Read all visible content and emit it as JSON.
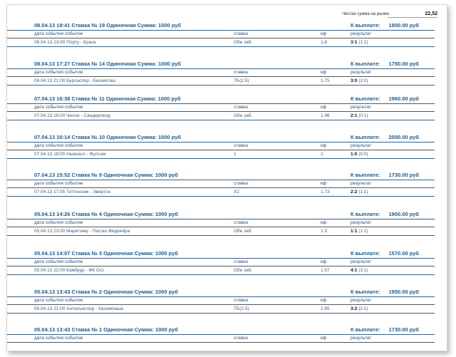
{
  "summary": {
    "label": "Чистая сумма на рынке:",
    "value": "22,52"
  },
  "columns": {
    "event": "дата события  событие",
    "stake": "ставка",
    "coef": "кф",
    "result": "результат"
  },
  "payout_label": "К выплате:",
  "bets": [
    {
      "title": "08.04.13 18:41  Ставка № 19   Одиночная   Сумма: 1000 руб",
      "payout": "1800.00 руб",
      "event": "08.04.13 23:00 Порту - Брага",
      "stake": "Обе заб.",
      "coef": "1.8",
      "score": "3:1",
      "half": "(1:1)"
    },
    {
      "title": "08.04.13 17:27  Ставка № 14   Одиночная   Сумма: 1000 руб",
      "payout": "1750.00 руб",
      "event": "08.04.13 21:00 Бурсаспор - Бешикташ",
      "stake": "ТБ(2.5)",
      "coef": "1.75",
      "score": "3:0",
      "half": "(2:0)"
    },
    {
      "title": "07.04.13 16:38  Ставка № 11   Одиночная   Сумма: 1000 руб",
      "payout": "1960.00 руб",
      "event": "07.04.13 18:00 Челси - Сандерленд",
      "stake": "Обе заб.",
      "coef": "1.96",
      "score": "2:1",
      "half": "(0:1)"
    },
    {
      "title": "07.04.13 16:14  Ставка № 10   Одиночная   Сумма: 1000 руб",
      "payout": "2000.00 руб",
      "event": "07.04.13 18:00 Ньюкасл - Фулхэм",
      "stake": "1",
      "coef": "2",
      "score": "1:0",
      "half": "(0:0)"
    },
    {
      "title": "07.04.13 15:52  Ставка № 9   Одиночная   Сумма: 1000 руб",
      "payout": "1730.00 руб",
      "event": "07.04.13 17:05 Тоттенхэм - Эвертон",
      "stake": "X2",
      "coef": "1.73",
      "score": "2:2",
      "half": "(1:1)"
    },
    {
      "title": "05.04.13 14:26  Ставка № 4   Одиночная   Сумма: 1000 руб",
      "payout": "1900.00 руб",
      "event": "05.04.13 23:00 Маритиму - Пасош Феррейра",
      "stake": "Обе заб.",
      "coef": "1.9",
      "score": "1:1",
      "half": "(1:1)"
    },
    {
      "title": "05.04.13 14:07  Ставка № 3   Одиночная   Сумма: 1000 руб",
      "payout": "1570.00 руб",
      "event": "05.04.13 22:00 Камбуур - ФК Осс",
      "stake": "Обе заб.",
      "coef": "1.57",
      "score": "4:1",
      "half": "(3:1)"
    },
    {
      "title": "05.04.13 13:43  Ставка № 2   Одиночная   Сумма: 1000 руб",
      "payout": "1950.00 руб",
      "event": "05.04.13 21:00 Антальяспор - Касимпаша",
      "stake": "ТБ(2.5)",
      "coef": "1.95",
      "score": "3:2",
      "half": "(2:1)"
    },
    {
      "title": "05.04.13 13:43  Ставка № 1   Одиночная   Сумма: 1000 руб",
      "payout": "1730.00 руб",
      "event": "",
      "stake": "",
      "coef": "",
      "score": "",
      "half": ""
    }
  ]
}
